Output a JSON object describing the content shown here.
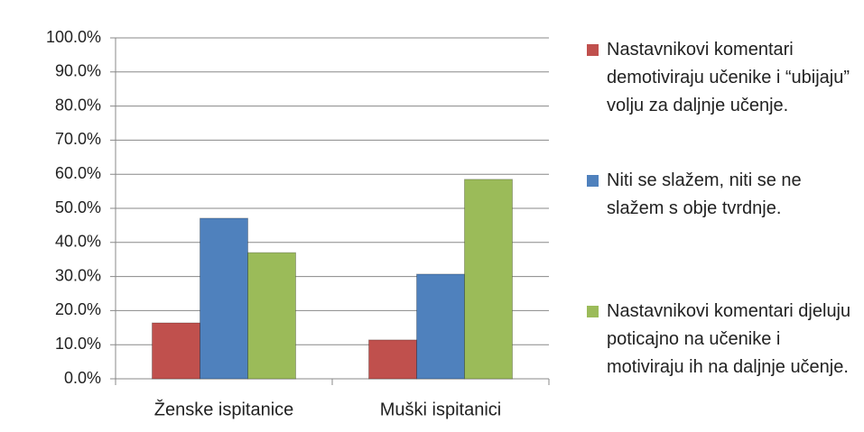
{
  "chart_data": {
    "type": "bar",
    "categories": [
      "Ženske ispitanice",
      "Muški ispitanici"
    ],
    "series": [
      {
        "name": "Nastavnikovi komentari demotiviraju učenike i “ubijaju” volju za daljnje učenje.",
        "color": "#c0504d",
        "values": [
          16.4,
          11.4
        ]
      },
      {
        "name": "Niti se slažem, niti se ne slažem s obje tvrdnje.",
        "color": "#4f81bd",
        "values": [
          47.1,
          30.7
        ]
      },
      {
        "name": "Nastavnikovi komentari djeluju poticajno na učenike i motiviraju ih na daljnje učenje.",
        "color": "#9bbb59",
        "values": [
          37.0,
          58.5
        ]
      }
    ],
    "ylim": [
      0,
      100
    ],
    "yticks": [
      {
        "value": 0,
        "label": "0.0%"
      },
      {
        "value": 10,
        "label": "10.0%"
      },
      {
        "value": 20,
        "label": "20.0%"
      },
      {
        "value": 30,
        "label": "30.0%"
      },
      {
        "value": 40,
        "label": "40.0%"
      },
      {
        "value": 50,
        "label": "50.0%"
      },
      {
        "value": 60,
        "label": "60.0%"
      },
      {
        "value": 70,
        "label": "70.0%"
      },
      {
        "value": 80,
        "label": "80.0%"
      },
      {
        "value": 90,
        "label": "90.0%"
      },
      {
        "value": 100,
        "label": "100.0%"
      }
    ],
    "grid": true,
    "legend": "right"
  }
}
